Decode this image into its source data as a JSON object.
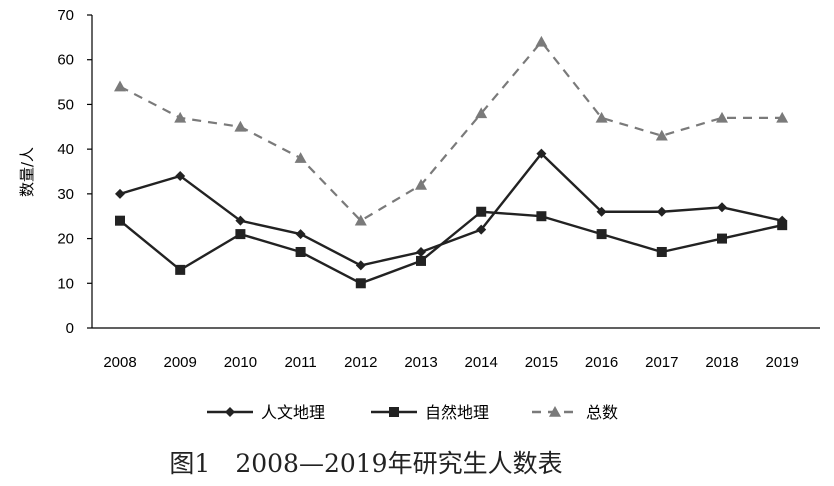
{
  "chart_data": {
    "type": "line",
    "categories": [
      "2008",
      "2009",
      "2010",
      "2011",
      "2012",
      "2013",
      "2014",
      "2015",
      "2016",
      "2017",
      "2018",
      "2019"
    ],
    "series": [
      {
        "name": "人文地理",
        "values": [
          30,
          34,
          24,
          21,
          14,
          17,
          22,
          39,
          26,
          26,
          27,
          24
        ],
        "color": "#222222",
        "marker": "diamond",
        "dash": "solid"
      },
      {
        "name": "自然地理",
        "values": [
          24,
          13,
          21,
          17,
          10,
          15,
          26,
          25,
          21,
          17,
          20,
          23
        ],
        "color": "#222222",
        "marker": "square",
        "dash": "solid"
      },
      {
        "name": "总数",
        "values": [
          54,
          47,
          45,
          38,
          24,
          32,
          48,
          64,
          47,
          43,
          47,
          47
        ],
        "color": "#7a7a7a",
        "marker": "triangle",
        "dash": "dashed"
      }
    ],
    "yticks": [
      "0",
      "10",
      "20",
      "30",
      "40",
      "50",
      "60",
      "70"
    ],
    "ylim": [
      0,
      70
    ],
    "ylabel": "数量/人",
    "xlabel": "",
    "grid": false,
    "legend_position": "bottom"
  },
  "caption": "图1　2008—2019年研究生人数表"
}
